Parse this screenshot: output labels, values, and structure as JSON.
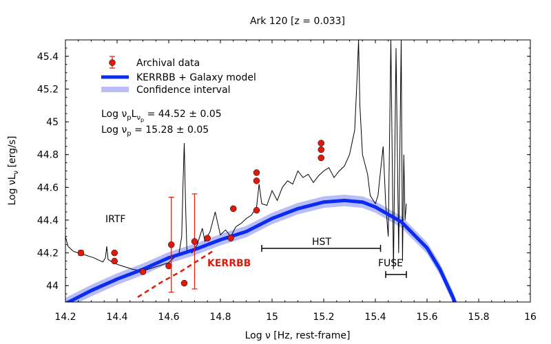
{
  "chart_data": {
    "type": "scatter",
    "title": "Ark 120  [z = 0.033]",
    "xlabel": "Log ν  [Hz, rest-frame]",
    "ylabel_main": "Log νL",
    "ylabel_sub": "ν",
    "ylabel_unit": "  [erg/s]",
    "xlim": [
      14.2,
      16.0
    ],
    "ylim": [
      43.9,
      45.5
    ],
    "x_ticks": [
      14.2,
      14.4,
      14.6,
      14.8,
      15.0,
      15.2,
      15.4,
      15.6,
      15.8,
      16.0
    ],
    "x_tick_labels": [
      "14.2",
      "14.4",
      "14.6",
      "14.8",
      "15",
      "15.2",
      "15.4",
      "15.6",
      "15.8",
      "16"
    ],
    "y_ticks": [
      44.0,
      44.2,
      44.4,
      44.6,
      44.8,
      45.0,
      45.2,
      45.4
    ],
    "y_tick_labels": [
      "44",
      "44.2",
      "44.4",
      "44.6",
      "44.8",
      "45",
      "45.2",
      "45.4"
    ],
    "legend": {
      "placement": "top-left",
      "entries": [
        {
          "label": "Archival data",
          "kind": "errorpoint",
          "color": "#dd1a0b"
        },
        {
          "label": "KERRBB + Galaxy model",
          "kind": "line",
          "color": "#0a2bf0"
        },
        {
          "label": "Confidence interval",
          "kind": "band",
          "color": "#b8bdf8"
        }
      ]
    },
    "fit_params": {
      "line1_pre": "Log ν",
      "line1_sub1": "p",
      "line1_mid": "L",
      "line1_sub2": "ν",
      "line1_sub3": "p",
      "line1_post": " = 44.52 ± 0.05",
      "line2_pre": "Log ν",
      "line2_sub": "p",
      "line2_post": " = 15.28 ± 0.05"
    },
    "annotations": {
      "irtf": "IRTF",
      "hst": "HST",
      "fuse": "FUSE",
      "kerrbb": "KERRBB",
      "hst_range": [
        14.96,
        15.42
      ],
      "fuse_range": [
        15.44,
        15.52
      ]
    },
    "series": [
      {
        "name": "Archival data",
        "type": "scatter",
        "color": "#dd1a0b",
        "points": [
          {
            "x": 14.26,
            "y": 44.2,
            "err": 0.015
          },
          {
            "x": 14.39,
            "y": 44.2
          },
          {
            "x": 14.39,
            "y": 44.15
          },
          {
            "x": 14.5,
            "y": 44.085
          },
          {
            "x": 14.6,
            "y": 44.12
          },
          {
            "x": 14.61,
            "y": 44.25,
            "err": 0.29
          },
          {
            "x": 14.66,
            "y": 44.015
          },
          {
            "x": 14.7,
            "y": 44.27,
            "err": 0.29
          },
          {
            "x": 14.75,
            "y": 44.29
          },
          {
            "x": 14.84,
            "y": 44.29
          },
          {
            "x": 14.85,
            "y": 44.47
          },
          {
            "x": 14.94,
            "y": 44.46
          },
          {
            "x": 14.94,
            "y": 44.64
          },
          {
            "x": 14.94,
            "y": 44.69
          },
          {
            "x": 15.19,
            "y": 44.78
          },
          {
            "x": 15.19,
            "y": 44.83
          },
          {
            "x": 15.19,
            "y": 44.87
          }
        ]
      },
      {
        "name": "Spectrum",
        "type": "line",
        "color": "#000000",
        "points": [
          [
            14.2,
            44.3
          ],
          [
            14.21,
            44.24
          ],
          [
            14.23,
            44.21
          ],
          [
            14.25,
            44.2
          ],
          [
            14.27,
            44.19
          ],
          [
            14.29,
            44.18
          ],
          [
            14.31,
            44.17
          ],
          [
            14.33,
            44.155
          ],
          [
            14.345,
            44.145
          ],
          [
            14.355,
            44.17
          ],
          [
            14.36,
            44.24
          ],
          [
            14.365,
            44.16
          ],
          [
            14.38,
            44.145
          ],
          [
            14.4,
            44.13
          ],
          [
            14.42,
            44.12
          ],
          [
            14.44,
            44.11
          ],
          [
            14.46,
            44.1
          ],
          [
            14.48,
            44.095
          ],
          [
            14.5,
            44.09
          ],
          [
            14.52,
            44.1
          ],
          [
            14.54,
            44.11
          ],
          [
            14.56,
            44.12
          ],
          [
            14.58,
            44.13
          ],
          [
            14.6,
            44.14
          ],
          [
            14.62,
            44.17
          ],
          [
            14.64,
            44.2
          ],
          [
            14.65,
            44.3
          ],
          [
            14.655,
            44.6
          ],
          [
            14.66,
            44.87
          ],
          [
            14.665,
            44.5
          ],
          [
            14.67,
            44.22
          ],
          [
            14.69,
            44.2
          ],
          [
            14.71,
            44.25
          ],
          [
            14.72,
            44.3
          ],
          [
            14.73,
            44.35
          ],
          [
            14.74,
            44.27
          ],
          [
            14.76,
            44.33
          ],
          [
            14.78,
            44.45
          ],
          [
            14.79,
            44.38
          ],
          [
            14.8,
            44.31
          ],
          [
            14.82,
            44.34
          ],
          [
            14.84,
            44.3
          ],
          [
            14.86,
            44.36
          ],
          [
            14.88,
            44.38
          ],
          [
            14.9,
            44.41
          ],
          [
            14.92,
            44.43
          ],
          [
            14.94,
            44.48
          ],
          [
            14.95,
            44.62
          ],
          [
            14.96,
            44.5
          ],
          [
            14.98,
            44.49
          ],
          [
            15.0,
            44.58
          ],
          [
            15.02,
            44.52
          ],
          [
            15.04,
            44.6
          ],
          [
            15.06,
            44.64
          ],
          [
            15.08,
            44.62
          ],
          [
            15.1,
            44.7
          ],
          [
            15.12,
            44.66
          ],
          [
            15.14,
            44.68
          ],
          [
            15.16,
            44.63
          ],
          [
            15.18,
            44.67
          ],
          [
            15.2,
            44.7
          ],
          [
            15.22,
            44.72
          ],
          [
            15.24,
            44.66
          ],
          [
            15.26,
            44.7
          ],
          [
            15.28,
            44.73
          ],
          [
            15.3,
            44.8
          ],
          [
            15.32,
            44.95
          ],
          [
            15.33,
            45.3
          ],
          [
            15.335,
            45.5
          ],
          [
            15.34,
            45.1
          ],
          [
            15.35,
            44.8
          ],
          [
            15.37,
            44.68
          ],
          [
            15.38,
            44.55
          ],
          [
            15.4,
            44.5
          ],
          [
            15.41,
            44.55
          ],
          [
            15.42,
            44.7
          ],
          [
            15.43,
            44.85
          ],
          [
            15.44,
            44.5
          ],
          [
            15.45,
            44.3
          ],
          [
            15.46,
            45.5
          ],
          [
            15.47,
            44.1
          ],
          [
            15.48,
            45.45
          ],
          [
            15.49,
            44.2
          ],
          [
            15.5,
            45.5
          ],
          [
            15.505,
            44.15
          ],
          [
            15.51,
            44.8
          ],
          [
            15.515,
            44.4
          ],
          [
            15.52,
            44.5
          ]
        ]
      },
      {
        "name": "KERRBB + Galaxy model",
        "type": "line",
        "color": "#0a2bf0",
        "points": [
          [
            14.2,
            43.89
          ],
          [
            14.3,
            43.97
          ],
          [
            14.4,
            44.04
          ],
          [
            14.5,
            44.1
          ],
          [
            14.6,
            44.17
          ],
          [
            14.7,
            44.22
          ],
          [
            14.8,
            44.28
          ],
          [
            14.9,
            44.33
          ],
          [
            15.0,
            44.41
          ],
          [
            15.1,
            44.47
          ],
          [
            15.2,
            44.51
          ],
          [
            15.28,
            44.52
          ],
          [
            15.35,
            44.51
          ],
          [
            15.4,
            44.48
          ],
          [
            15.5,
            44.39
          ],
          [
            15.6,
            44.23
          ],
          [
            15.65,
            44.1
          ],
          [
            15.7,
            43.93
          ],
          [
            15.72,
            43.85
          ]
        ],
        "band_half_width": 0.035
      },
      {
        "name": "KERRBB",
        "type": "line",
        "style": "dashed",
        "color": "#dd1a0b",
        "points": [
          [
            14.48,
            43.93
          ],
          [
            14.57,
            44.02
          ],
          [
            14.65,
            44.09
          ],
          [
            14.72,
            44.16
          ],
          [
            14.78,
            44.22
          ]
        ]
      }
    ]
  }
}
